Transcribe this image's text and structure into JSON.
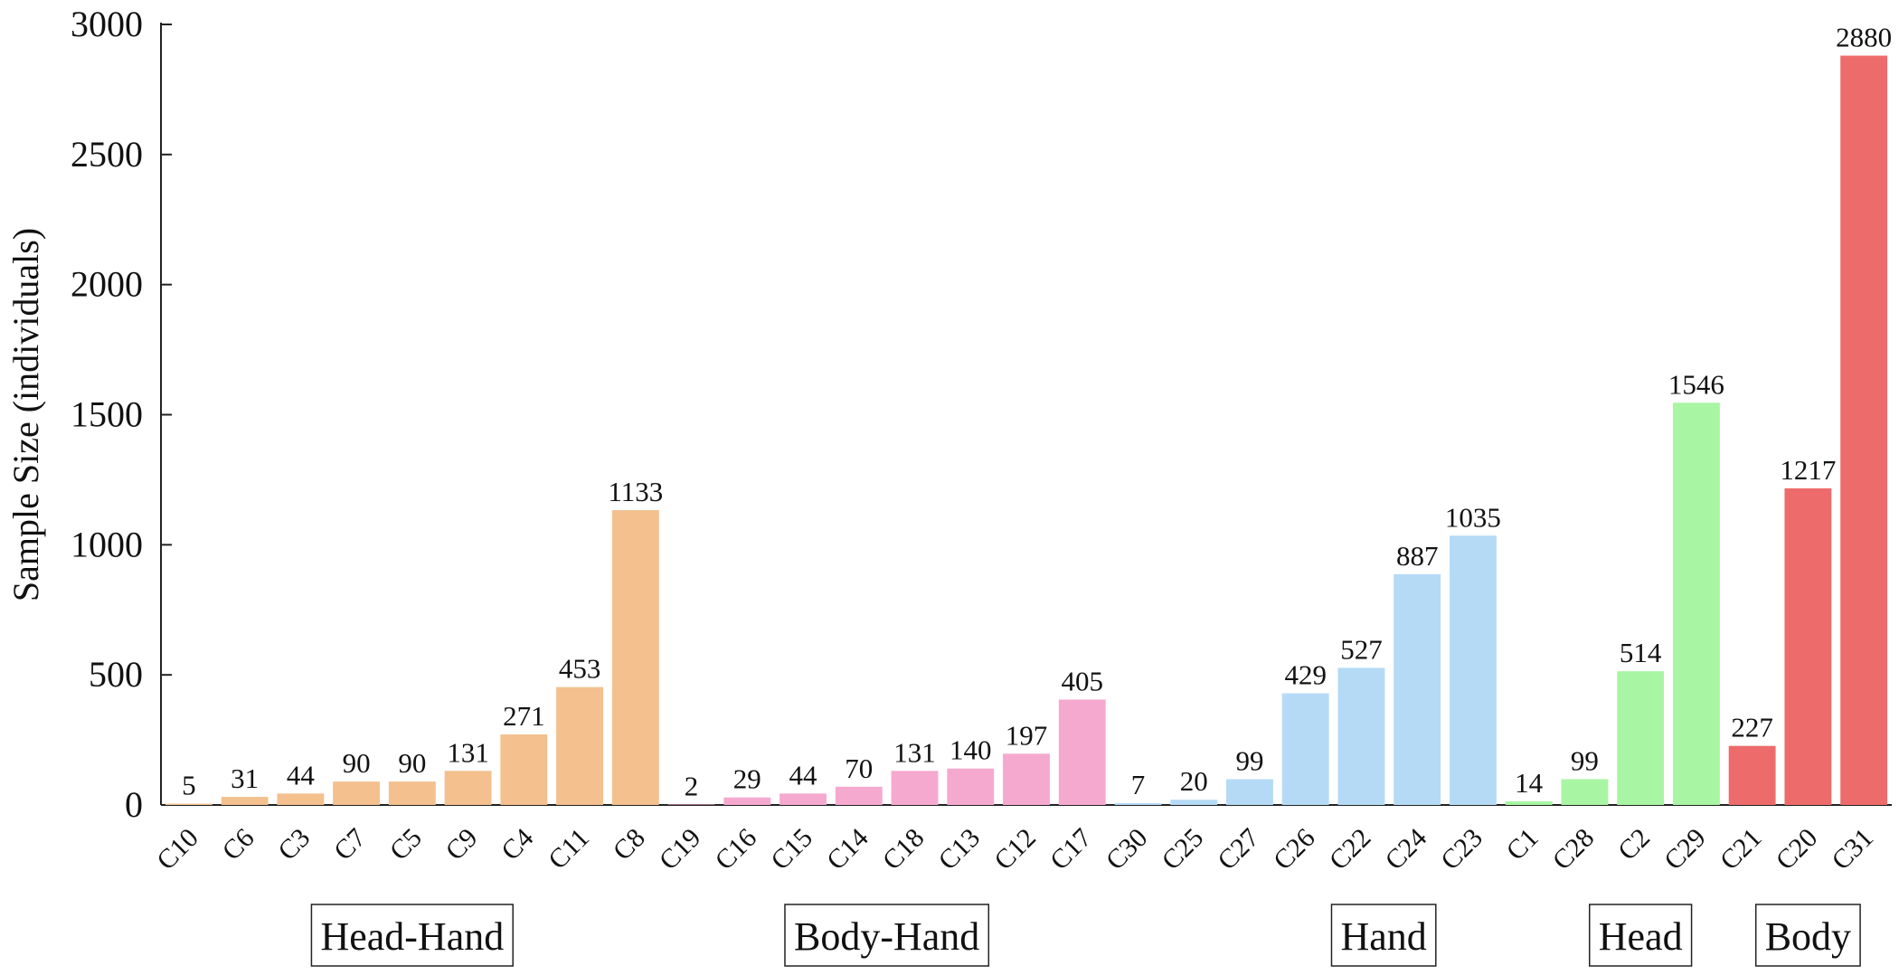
{
  "chart_data": {
    "type": "bar",
    "title": "",
    "xlabel": "",
    "ylabel": "Sample Size (individuals)",
    "ylim": [
      0,
      3000
    ],
    "yticks": [
      0,
      500,
      1000,
      1500,
      2000,
      2500,
      3000
    ],
    "grid": false,
    "legend": "none",
    "groups": [
      {
        "name": "Head-Hand",
        "color": "#F3C08E",
        "categories": [
          "C10",
          "C6",
          "C3",
          "C7",
          "C5",
          "C9",
          "C4",
          "C11",
          "C8"
        ],
        "values": [
          5,
          31,
          44,
          90,
          90,
          131,
          271,
          453,
          1133
        ]
      },
      {
        "name": "Body-Hand",
        "color": "#F6A9CF",
        "categories": [
          "C19",
          "C16",
          "C15",
          "C14",
          "C18",
          "C13",
          "C12",
          "C17"
        ],
        "values": [
          2,
          29,
          44,
          70,
          131,
          140,
          197,
          405
        ]
      },
      {
        "name": "Hand",
        "color": "#B5DAF6",
        "categories": [
          "C30",
          "C25",
          "C27",
          "C26",
          "C22",
          "C24",
          "C23"
        ],
        "values": [
          7,
          20,
          99,
          429,
          527,
          887,
          1035
        ]
      },
      {
        "name": "Head",
        "color": "#A8F5A3",
        "categories": [
          "C1",
          "C28",
          "C2",
          "C29"
        ],
        "values": [
          14,
          99,
          514,
          1546
        ]
      },
      {
        "name": "Body",
        "color": "#EE6B6B",
        "categories": [
          "C21",
          "C20",
          "C31"
        ],
        "values": [
          227,
          1217,
          2880
        ]
      }
    ]
  }
}
